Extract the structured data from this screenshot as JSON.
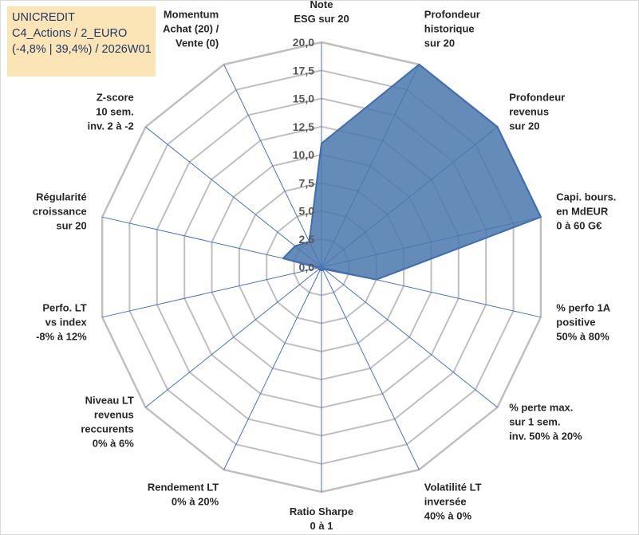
{
  "info_box": {
    "line1": "UNICREDIT",
    "line2": "C4_Actions / 2_EURO",
    "line3": "(-4,8% | 39,4%) / 2026W01"
  },
  "colors": {
    "fill": "#4a78ad",
    "stroke": "#3d6db5",
    "grid": "#bfbfbf",
    "spoke": "#4472c4",
    "info_box_bg": "#fbe5b6",
    "info_box_text": "#1f3864"
  },
  "chart_data": {
    "type": "radar",
    "title": "",
    "rmin": 0,
    "rmax": 20,
    "tick_step": 2.5,
    "ticks": [
      "0,0",
      "2,5",
      "5,0",
      "7,5",
      "10,0",
      "12,5",
      "15,0",
      "17,5",
      "20,0"
    ],
    "grid": true,
    "legend": "none",
    "axes": [
      {
        "label": [
          "Note",
          "ESG sur 20"
        ]
      },
      {
        "label": [
          "Profondeur",
          "historique",
          "sur 20"
        ]
      },
      {
        "label": [
          "Profondeur",
          "revenus",
          "sur 20"
        ]
      },
      {
        "label": [
          "Capi. bours.",
          "en MdEUR",
          "0 à 60 G€"
        ]
      },
      {
        "label": [
          "% perfo 1A",
          "positive",
          "50% à 80%"
        ]
      },
      {
        "label": [
          "% perte max.",
          "sur 1 sem.",
          "inv. 50% à 20%"
        ]
      },
      {
        "label": [
          "Volatilité LT",
          "inversée",
          "40% à 0%"
        ]
      },
      {
        "label": [
          "Ratio Sharpe",
          "0 à 1"
        ]
      },
      {
        "label": [
          "Rendement LT",
          "0% à 20%"
        ]
      },
      {
        "label": [
          "Niveau LT",
          "revenus",
          "reccurents",
          "0% à 6%"
        ]
      },
      {
        "label": [
          "Perfo. LT",
          "vs index",
          "-8% à 12%"
        ]
      },
      {
        "label": [
          "Régularité",
          "croissance",
          "sur 20"
        ]
      },
      {
        "label": [
          "Z-score",
          "10 sem.",
          "inv. 2 à -2"
        ]
      },
      {
        "label": [
          "Momentum",
          "Achat (20) /",
          "Vente (0)"
        ]
      }
    ],
    "series": [
      {
        "values": [
          11.0,
          20.0,
          20.0,
          20.0,
          5.0,
          0.3,
          0.3,
          0.3,
          0.3,
          0.3,
          0.3,
          3.5,
          3.0,
          2.5
        ]
      }
    ]
  }
}
